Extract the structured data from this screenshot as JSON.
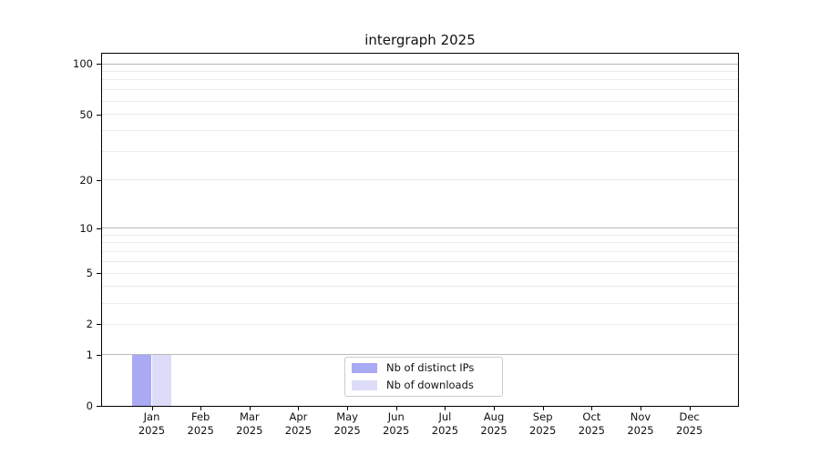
{
  "title": "intergraph 2025",
  "colors": {
    "distinct_ips": "#a9a9f4",
    "downloads": "#dcdcf8",
    "grid_major": "#b9b9b9",
    "grid_minor": "#ebebeb",
    "axis": "#000000",
    "legend_border": "#cccccc",
    "background": "#ffffff"
  },
  "legend": {
    "items": [
      {
        "label": "Nb of distinct IPs",
        "color_key": "distinct_ips"
      },
      {
        "label": "Nb of downloads",
        "color_key": "downloads"
      }
    ]
  },
  "chart_data": {
    "type": "bar",
    "title": "intergraph 2025",
    "x_labels": [
      {
        "month": "Jan",
        "year": "2025"
      },
      {
        "month": "Feb",
        "year": "2025"
      },
      {
        "month": "Mar",
        "year": "2025"
      },
      {
        "month": "Apr",
        "year": "2025"
      },
      {
        "month": "May",
        "year": "2025"
      },
      {
        "month": "Jun",
        "year": "2025"
      },
      {
        "month": "Jul",
        "year": "2025"
      },
      {
        "month": "Aug",
        "year": "2025"
      },
      {
        "month": "Sep",
        "year": "2025"
      },
      {
        "month": "Oct",
        "year": "2025"
      },
      {
        "month": "Nov",
        "year": "2025"
      },
      {
        "month": "Dec",
        "year": "2025"
      }
    ],
    "series": [
      {
        "name": "Nb of distinct IPs",
        "color": "#a9a9f4",
        "values": [
          1,
          0,
          0,
          0,
          0,
          0,
          0,
          0,
          0,
          0,
          0,
          0
        ]
      },
      {
        "name": "Nb of downloads",
        "color": "#dcdcf8",
        "values": [
          1,
          0,
          0,
          0,
          0,
          0,
          0,
          0,
          0,
          0,
          0,
          0
        ]
      }
    ],
    "xlabel": "",
    "ylabel": "",
    "y_axis": {
      "scale": "log10(1+x)",
      "tick_values": [
        0,
        1,
        2,
        5,
        10,
        20,
        50,
        100
      ],
      "major_gridlines": [
        1,
        10,
        100
      ],
      "minor_gridlines": [
        2,
        3,
        4,
        5,
        6,
        7,
        8,
        9,
        20,
        30,
        40,
        50,
        60,
        70,
        80,
        90
      ],
      "range": [
        0,
        113
      ]
    },
    "grid": true,
    "legend_position": "bottom-center"
  }
}
